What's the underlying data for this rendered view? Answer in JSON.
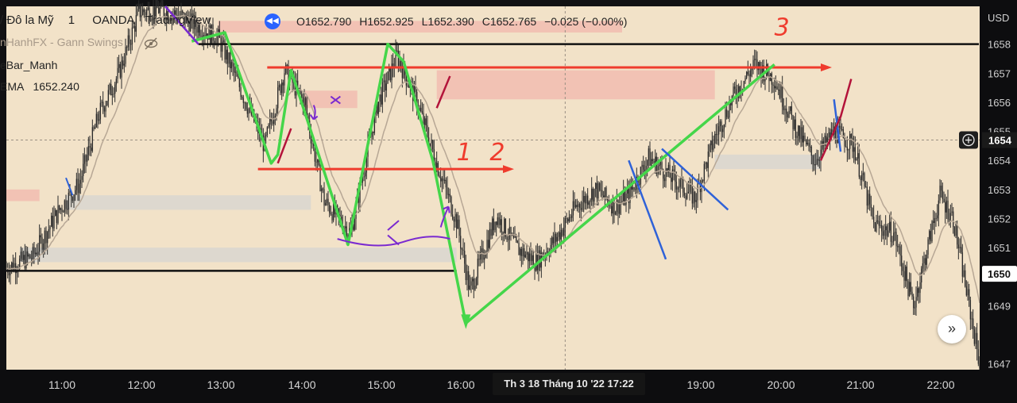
{
  "legend": {
    "symbol": "/ Đô la Mỹ",
    "interval": "1",
    "broker": "OANDA",
    "platform": "TradingView",
    "ohlc": {
      "O": "1652.790",
      "H": "1652.925",
      "L": "1652.390",
      "C": "1652.765",
      "change": "−0.025 (−0.00%)"
    },
    "indicator1": "nHanhFX - Gann Swings",
    "indicator2": "eBar_Manh",
    "indicator3_name": "EMA",
    "indicator3_value": "1652.240",
    "rewind_icon": "rewind-icon",
    "hide_icon": "eye-off-icon"
  },
  "price_axis": {
    "currency": "USD",
    "ticks": [
      "1658",
      "1657",
      "1656",
      "1655",
      "1654",
      "1653",
      "1652",
      "1651",
      "1650",
      "1649",
      "1647"
    ],
    "current_price_label": "1650",
    "crosshair_price_label": "1654",
    "add_icon": "plus-circle-icon"
  },
  "time_axis": {
    "ticks": [
      "11:00",
      "12:00",
      "13:00",
      "14:00",
      "15:00",
      "16:00",
      "19:00",
      "20:00",
      "21:00",
      "22:00"
    ],
    "crosshair_label": "Th 3 18 Tháng 10 '22   17:22"
  },
  "annotations": {
    "label1": "1",
    "label2": "2",
    "label3": "3"
  },
  "scroll_button_icon": "chevron-double-right-icon",
  "colors": {
    "background": "#f2e2c8",
    "candle": "#2b2b2b",
    "ema": "#b7a795",
    "zigzag": "#45d64a",
    "red_line": "#ef3b2d",
    "blue": "#2f62d8",
    "purple": "#7a2ad0",
    "zone_red": "#f1b7ad",
    "zone_gray": "#d6d4d2"
  },
  "chart_data": {
    "type": "candlestick",
    "xlabel": "",
    "ylabel": "",
    "ylim": [
      1646.8,
      1659.3
    ],
    "time_range": [
      "10:20",
      "22:35"
    ],
    "path_keypoints": [
      [
        "10:20",
        1650.3
      ],
      [
        "10:40",
        1650.7
      ],
      [
        "11:00",
        1652.3
      ],
      [
        "11:15",
        1653.2
      ],
      [
        "11:30",
        1655.6
      ],
      [
        "11:45",
        1657.0
      ],
      [
        "12:00",
        1659.1
      ],
      [
        "12:15",
        1659.2
      ],
      [
        "12:30",
        1659.0
      ],
      [
        "12:45",
        1658.6
      ],
      [
        "13:00",
        1658.2
      ],
      [
        "13:10",
        1657.2
      ],
      [
        "13:20",
        1656.1
      ],
      [
        "13:35",
        1654.5
      ],
      [
        "13:50",
        1657.1
      ],
      [
        "14:05",
        1656.0
      ],
      [
        "14:20",
        1652.6
      ],
      [
        "14:40",
        1651.5
      ],
      [
        "15:00",
        1655.9
      ],
      [
        "15:15",
        1657.6
      ],
      [
        "15:30",
        1656.0
      ],
      [
        "15:45",
        1653.9
      ],
      [
        "16:00",
        1651.9
      ],
      [
        "16:10",
        1649.5
      ],
      [
        "16:30",
        1652.1
      ],
      [
        "16:45",
        1651.0
      ],
      [
        "17:00",
        1650.5
      ],
      [
        "17:15",
        1651.3
      ],
      [
        "17:30",
        1652.4
      ],
      [
        "17:45",
        1653.0
      ],
      [
        "18:00",
        1652.4
      ],
      [
        "18:10",
        1652.8
      ],
      [
        "18:25",
        1654.1
      ],
      [
        "18:40",
        1653.5
      ],
      [
        "19:00",
        1652.7
      ],
      [
        "19:15",
        1654.8
      ],
      [
        "19:30",
        1656.3
      ],
      [
        "19:45",
        1657.3
      ],
      [
        "20:00",
        1656.8
      ],
      [
        "20:15",
        1655.2
      ],
      [
        "20:30",
        1654.0
      ],
      [
        "20:45",
        1655.0
      ],
      [
        "21:00",
        1654.5
      ],
      [
        "21:15",
        1651.8
      ],
      [
        "21:30",
        1651.5
      ],
      [
        "21:45",
        1649.0
      ],
      [
        "21:55",
        1650.9
      ],
      [
        "22:05",
        1652.8
      ],
      [
        "22:15",
        1652.0
      ],
      [
        "22:25",
        1649.5
      ],
      [
        "22:35",
        1647.0
      ]
    ]
  }
}
